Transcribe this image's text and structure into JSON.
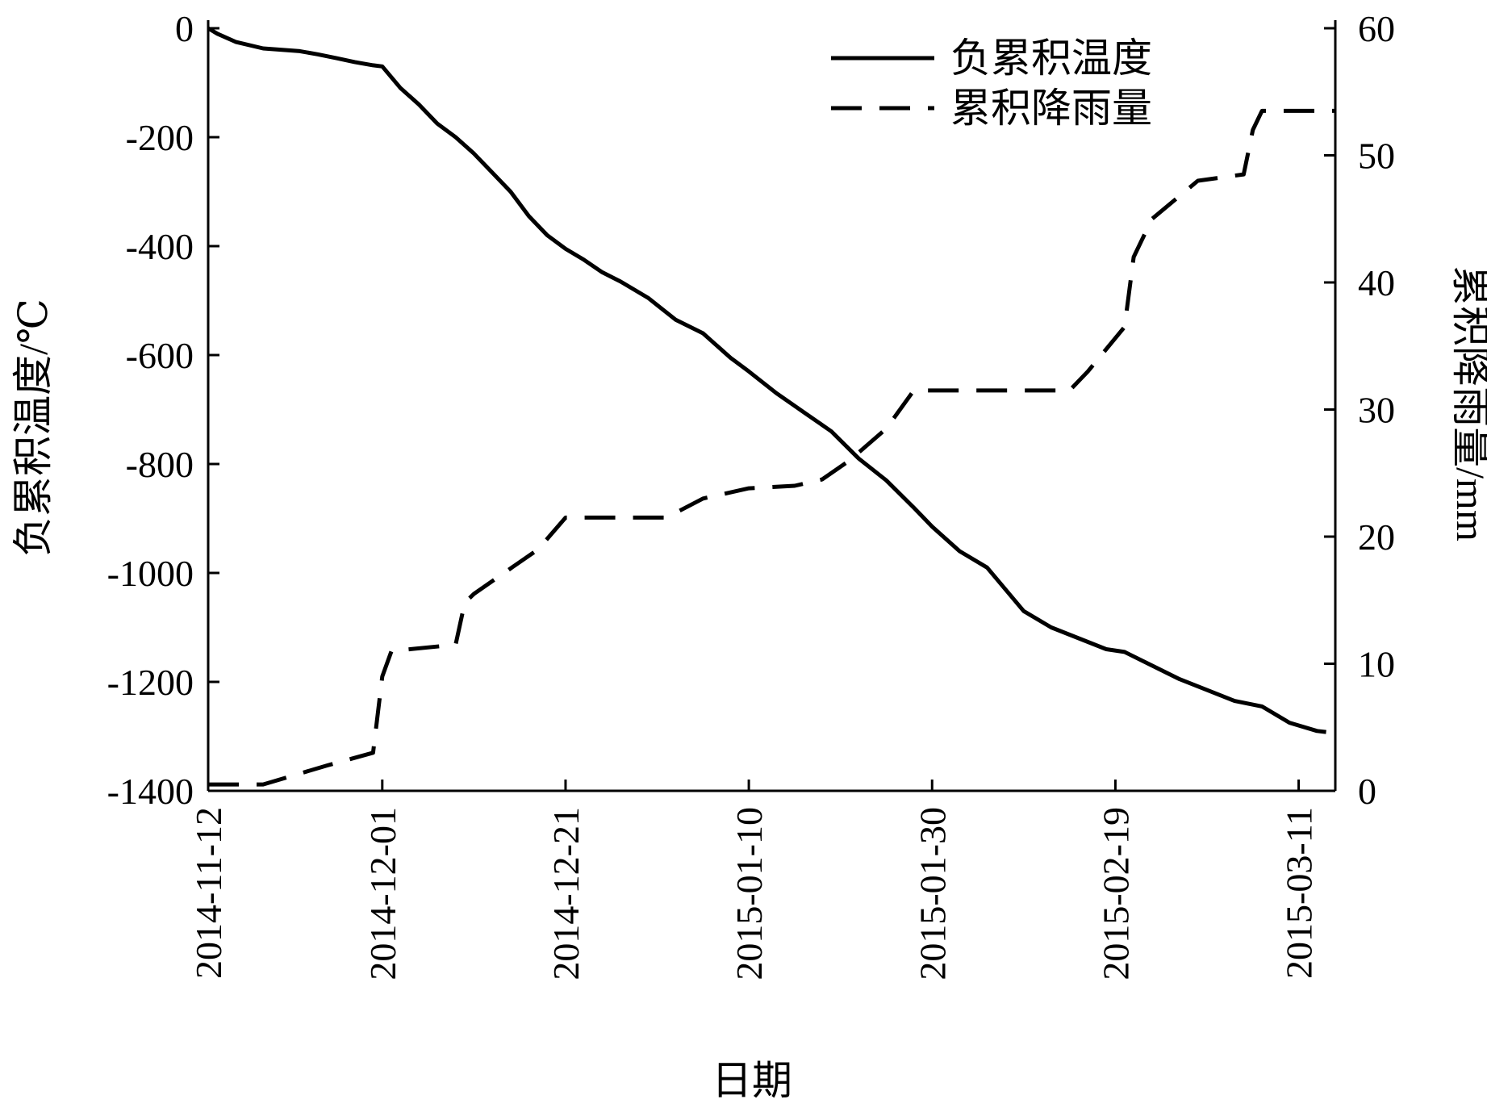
{
  "chart_data": {
    "type": "line",
    "xlabel": "日期",
    "ylabel_left": "负累积温度/℃",
    "ylabel_right": "累积降雨量/mm",
    "x_domain": [
      "2014-11-12",
      "2015-03-15"
    ],
    "x_ticks": [
      "2014-11-12",
      "2014-12-01",
      "2014-12-21",
      "2015-01-10",
      "2015-01-30",
      "2015-02-19",
      "2015-03-11"
    ],
    "ylim_left": [
      -1400,
      0
    ],
    "yticks_left": [
      "0",
      "-200",
      "-400",
      "-600",
      "-800",
      "-1000",
      "-1200",
      "-1400"
    ],
    "ylim_right": [
      0,
      60
    ],
    "yticks_right": [
      "60",
      "50",
      "40",
      "30",
      "20",
      "10",
      "0"
    ],
    "grid": false,
    "legend_position": "top-right",
    "series": [
      {
        "name": "负累积温度",
        "axis": "left",
        "style": "solid",
        "color": "#000000",
        "points": [
          [
            "2014-11-12",
            0
          ],
          [
            "2014-11-13",
            -10
          ],
          [
            "2014-11-15",
            -25
          ],
          [
            "2014-11-18",
            -37
          ],
          [
            "2014-11-22",
            -42
          ],
          [
            "2014-11-24",
            -48
          ],
          [
            "2014-11-26",
            -55
          ],
          [
            "2014-11-28",
            -62
          ],
          [
            "2014-11-30",
            -68
          ],
          [
            "2014-12-01",
            -70
          ],
          [
            "2014-12-03",
            -110
          ],
          [
            "2014-12-05",
            -140
          ],
          [
            "2014-12-07",
            -175
          ],
          [
            "2014-12-09",
            -200
          ],
          [
            "2014-12-11",
            -230
          ],
          [
            "2014-12-13",
            -265
          ],
          [
            "2014-12-15",
            -300
          ],
          [
            "2014-12-17",
            -345
          ],
          [
            "2014-12-19",
            -380
          ],
          [
            "2014-12-21",
            -405
          ],
          [
            "2014-12-23",
            -425
          ],
          [
            "2014-12-25",
            -448
          ],
          [
            "2014-12-27",
            -465
          ],
          [
            "2014-12-30",
            -495
          ],
          [
            "2015-01-02",
            -535
          ],
          [
            "2015-01-05",
            -560
          ],
          [
            "2015-01-08",
            -605
          ],
          [
            "2015-01-10",
            -630
          ],
          [
            "2015-01-13",
            -670
          ],
          [
            "2015-01-16",
            -705
          ],
          [
            "2015-01-19",
            -740
          ],
          [
            "2015-01-22",
            -790
          ],
          [
            "2015-01-25",
            -830
          ],
          [
            "2015-01-28",
            -880
          ],
          [
            "2015-01-30",
            -915
          ],
          [
            "2015-02-02",
            -960
          ],
          [
            "2015-02-05",
            -990
          ],
          [
            "2015-02-07",
            -1030
          ],
          [
            "2015-02-09",
            -1070
          ],
          [
            "2015-02-12",
            -1100
          ],
          [
            "2015-02-15",
            -1120
          ],
          [
            "2015-02-18",
            -1140
          ],
          [
            "2015-02-20",
            -1145
          ],
          [
            "2015-02-23",
            -1170
          ],
          [
            "2015-02-26",
            -1195
          ],
          [
            "2015-03-01",
            -1215
          ],
          [
            "2015-03-04",
            -1235
          ],
          [
            "2015-03-07",
            -1245
          ],
          [
            "2015-03-10",
            -1275
          ],
          [
            "2015-03-13",
            -1290
          ],
          [
            "2015-03-14",
            -1292
          ]
        ]
      },
      {
        "name": "累积降雨量",
        "axis": "right",
        "style": "dashed",
        "color": "#000000",
        "points": [
          [
            "2014-11-12",
            0.5
          ],
          [
            "2014-11-18",
            0.5
          ],
          [
            "2014-11-25",
            2.0
          ],
          [
            "2014-11-30",
            3.0
          ],
          [
            "2014-12-01",
            9.0
          ],
          [
            "2014-12-02",
            11.0
          ],
          [
            "2014-12-09",
            11.5
          ],
          [
            "2014-12-10",
            14.8
          ],
          [
            "2014-12-11",
            15.5
          ],
          [
            "2014-12-15",
            17.5
          ],
          [
            "2014-12-18",
            19.0
          ],
          [
            "2014-12-21",
            21.5
          ],
          [
            "2015-01-01",
            21.5
          ],
          [
            "2015-01-05",
            23.0
          ],
          [
            "2015-01-10",
            23.8
          ],
          [
            "2015-01-15",
            24.0
          ],
          [
            "2015-01-18",
            24.5
          ],
          [
            "2015-01-21",
            26.0
          ],
          [
            "2015-01-25",
            28.5
          ],
          [
            "2015-01-28",
            31.5
          ],
          [
            "2015-02-14",
            31.5
          ],
          [
            "2015-02-16",
            33.0
          ],
          [
            "2015-02-20",
            36.5
          ],
          [
            "2015-02-21",
            42.0
          ],
          [
            "2015-02-23",
            45.0
          ],
          [
            "2015-02-28",
            48.0
          ],
          [
            "2015-03-05",
            48.5
          ],
          [
            "2015-03-06",
            52.0
          ],
          [
            "2015-03-07",
            53.5
          ],
          [
            "2015-03-15",
            53.5
          ]
        ]
      }
    ]
  }
}
